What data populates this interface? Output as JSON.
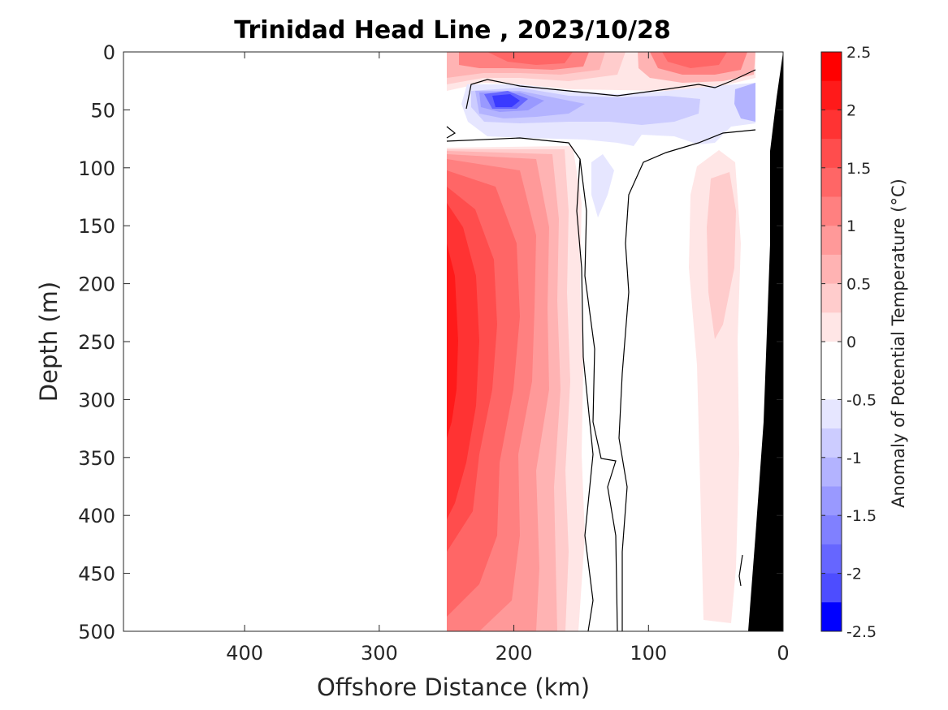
{
  "chart_data": {
    "type": "heatmap",
    "title": "Trinidad Head Line , 2023/10/28",
    "xlabel": "Offshore Distance (km)",
    "ylabel": "Depth (m)",
    "xlim": [
      490,
      0
    ],
    "ylim": [
      0,
      500
    ],
    "x_reversed": true,
    "y_reversed": true,
    "xticks": [
      400,
      300,
      200,
      100,
      0
    ],
    "yticks": [
      0,
      50,
      100,
      150,
      200,
      250,
      300,
      350,
      400,
      450,
      500
    ],
    "grid": false,
    "colorbar": {
      "label": "Anomaly of Potential Temperature (°C)",
      "range": [
        -2.5,
        2.5
      ],
      "ticks": [
        "2.5",
        "2",
        "1.5",
        "1",
        "0.5",
        "0",
        "-0.5",
        "-1",
        "-1.5",
        "-2",
        "-2.5"
      ],
      "levels": [
        {
          "lo": 2.25,
          "hi": 2.5,
          "color": "#ff0000"
        },
        {
          "lo": 2.0,
          "hi": 2.25,
          "color": "#ff1a1a"
        },
        {
          "lo": 1.75,
          "hi": 2.0,
          "color": "#ff3333"
        },
        {
          "lo": 1.5,
          "hi": 1.75,
          "color": "#ff4d4d"
        },
        {
          "lo": 1.25,
          "hi": 1.5,
          "color": "#ff6666"
        },
        {
          "lo": 1.0,
          "hi": 1.25,
          "color": "#ff8080"
        },
        {
          "lo": 0.75,
          "hi": 1.0,
          "color": "#ff9999"
        },
        {
          "lo": 0.5,
          "hi": 0.75,
          "color": "#ffb3b3"
        },
        {
          "lo": 0.25,
          "hi": 0.5,
          "color": "#ffcccc"
        },
        {
          "lo": 0.0,
          "hi": 0.25,
          "color": "#ffe6e6"
        },
        {
          "lo": -0.25,
          "hi": 0.0,
          "color": "#ffffff"
        },
        {
          "lo": -0.5,
          "hi": -0.25,
          "color": "#ffffff"
        },
        {
          "lo": -0.75,
          "hi": -0.5,
          "color": "#e6e6ff"
        },
        {
          "lo": -1.0,
          "hi": -0.75,
          "color": "#ccccff"
        },
        {
          "lo": -1.25,
          "hi": -1.0,
          "color": "#b3b3ff"
        },
        {
          "lo": -1.5,
          "hi": -1.25,
          "color": "#9999ff"
        },
        {
          "lo": -1.75,
          "hi": -1.5,
          "color": "#8080ff"
        },
        {
          "lo": -2.0,
          "hi": -1.75,
          "color": "#6666ff"
        },
        {
          "lo": -2.25,
          "hi": -2.0,
          "color": "#4d4dff"
        },
        {
          "lo": -2.5,
          "hi": -2.25,
          "color": "#0000ff"
        }
      ]
    },
    "data_extent_km": [
      250,
      22
    ],
    "bathymetry_color": "#000000",
    "zero_contour_color": "#000000",
    "features": [
      {
        "name": "surface-warm-offshore",
        "center_km": 190,
        "center_depth_m": 10,
        "anomaly": 1.5
      },
      {
        "name": "surface-warm-nearshore",
        "center_km": 70,
        "center_depth_m": 10,
        "anomaly": 1.5
      },
      {
        "name": "cold-core-50m",
        "center_km": 205,
        "center_depth_m": 43,
        "anomaly": -2.0
      },
      {
        "name": "cold-band-50m",
        "center_km": 100,
        "center_depth_m": 50,
        "anomaly": -0.75
      },
      {
        "name": "subsurface-warm-core",
        "center_km": 245,
        "center_depth_m": 280,
        "anomaly": 2.0
      },
      {
        "name": "nearshore-weak-warm",
        "center_km": 50,
        "center_depth_m": 250,
        "anomaly": 0.5
      }
    ]
  }
}
